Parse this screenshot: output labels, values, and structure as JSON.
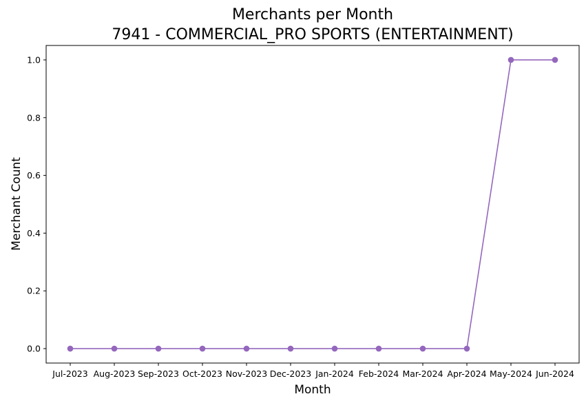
{
  "chart_data": {
    "type": "line",
    "title": "Merchants per Month",
    "subtitle": "7941 - COMMERCIAL_PRO SPORTS (ENTERTAINMENT)",
    "xlabel": "Month",
    "ylabel": "Merchant Count",
    "categories": [
      "Jul-2023",
      "Aug-2023",
      "Sep-2023",
      "Oct-2023",
      "Nov-2023",
      "Dec-2023",
      "Jan-2024",
      "Feb-2024",
      "Mar-2024",
      "Apr-2024",
      "May-2024",
      "Jun-2024"
    ],
    "series": [
      {
        "values": [
          0,
          0,
          0,
          0,
          0,
          0,
          0,
          0,
          0,
          0,
          1,
          1
        ],
        "color": "#9467bd",
        "marker": "circle"
      }
    ],
    "ylim": [
      -0.05,
      1.05
    ],
    "yticks": [
      "0.0",
      "0.2",
      "0.4",
      "0.6",
      "0.8",
      "1.0"
    ],
    "grid": false,
    "legend": "none"
  }
}
